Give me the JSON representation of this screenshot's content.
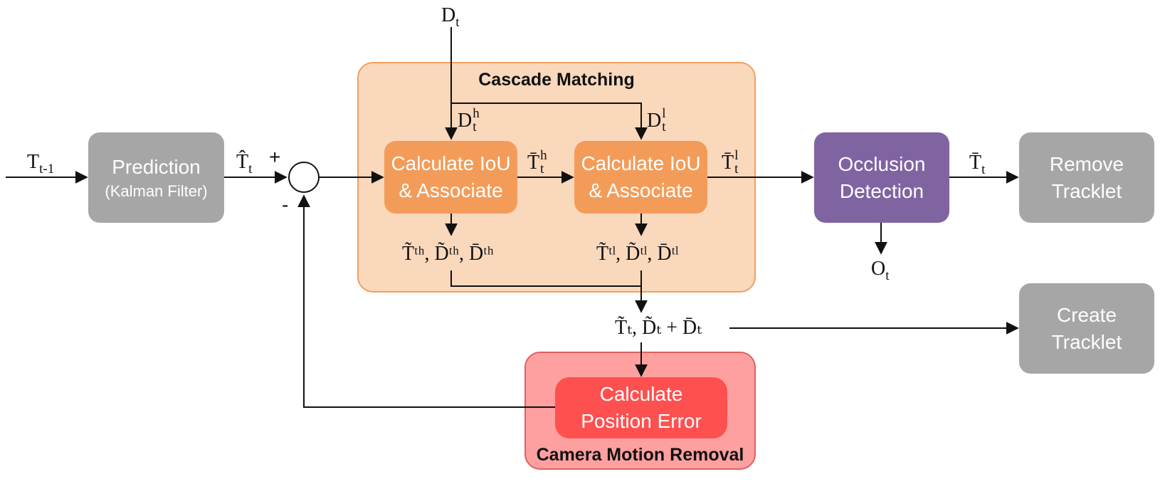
{
  "colors": {
    "gray_block": "#a6a6a6",
    "orange_group": "#fad8bc",
    "orange_group_border": "#f0a060",
    "orange_block": "#f39c5a",
    "purple_block": "#8064a2",
    "red_group": "#ffa0a0",
    "red_group_border": "#e06060",
    "red_block": "#ff5050"
  },
  "groups": {
    "cascade_matching": {
      "title": "Cascade Matching"
    },
    "camera_motion_removal": {
      "title": "Camera Motion Removal"
    }
  },
  "blocks": {
    "prediction": {
      "line1": "Prediction",
      "line2": "(Kalman Filter)"
    },
    "calc_iou_high": {
      "line1": "Calculate IoU",
      "line2": "& Associate"
    },
    "calc_iou_low": {
      "line1": "Calculate IoU",
      "line2": "& Associate"
    },
    "occlusion_detection": {
      "line1": "Occlusion",
      "line2": "Detection"
    },
    "remove_tracklet": {
      "line1": "Remove",
      "line2": "Tracklet"
    },
    "create_tracklet": {
      "line1": "Create",
      "line2": "Tracklet"
    },
    "calc_position_error": {
      "line1": "Calculate",
      "line2": "Position Error"
    }
  },
  "signals": {
    "t_prev": {
      "base": "T",
      "sub": "t-1"
    },
    "t_hat": {
      "base": "T̂",
      "sub": "t"
    },
    "d_t": {
      "base": "D",
      "sub": "t"
    },
    "d_t_high": {
      "base": "D",
      "sub": "t",
      "sup": "h"
    },
    "d_t_low": {
      "base": "D",
      "sub": "t",
      "sup": "l"
    },
    "t_bar_high": {
      "base": "T̄",
      "sub": "t",
      "sup": "h"
    },
    "t_bar_low": {
      "base": "T̄",
      "sub": "t",
      "sup": "l"
    },
    "t_bar": {
      "base": "T̄",
      "sub": "t"
    },
    "o_t": {
      "base": "O",
      "sub": "t"
    },
    "unmatched_high": "T̃ᵗʰ, D̃ᵗʰ, D̄ᵗʰ",
    "unmatched_low": "T̃ᵗˡ, D̃ᵗˡ, D̄ᵗˡ",
    "merged": "T̃ₜ, D̃ₜ + D̄ₜ",
    "plus_sign": "+",
    "minus_sign": "-"
  }
}
